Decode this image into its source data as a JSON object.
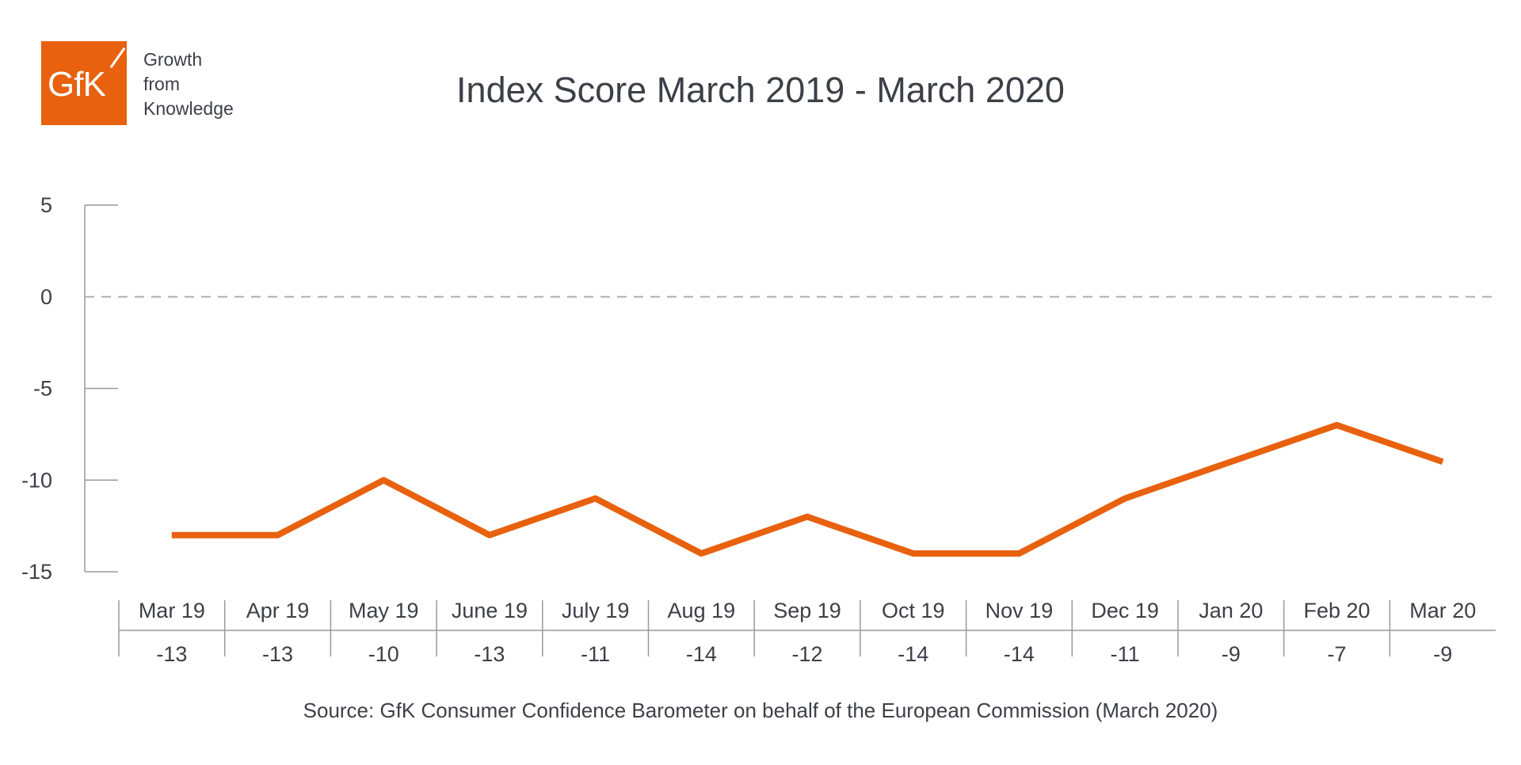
{
  "brand": {
    "logo_text": "GfK",
    "tagline": [
      "Growth",
      "from",
      "Knowledge"
    ],
    "color": "#e8610e"
  },
  "chart_data": {
    "type": "line",
    "title": "Index Score March 2019 - March 2020",
    "source": "Source: GfK Consumer Confidence Barometer on behalf of the European Commission (March 2020)",
    "categories": [
      "Mar 19",
      "Apr 19",
      "May 19",
      "June 19",
      "July 19",
      "Aug 19",
      "Sep 19",
      "Oct 19",
      "Nov 19",
      "Dec 19",
      "Jan 20",
      "Feb 20",
      "Mar 20"
    ],
    "series": [
      {
        "values": [
          -13,
          -13,
          -10,
          -13,
          -11,
          -14,
          -12,
          -14,
          -14,
          -11,
          -9,
          -7,
          -9
        ],
        "color": "#e8610e"
      }
    ],
    "table_labels": [
      "-13",
      "-13",
      "-10",
      "-13",
      "-11",
      "-14",
      "-12",
      "-14",
      "-14",
      "-11",
      "-9",
      "-7",
      "-9"
    ],
    "y_ticks": [
      5,
      0,
      -5,
      -10,
      -15
    ],
    "y_tick_labels": [
      "5",
      "0",
      "-5",
      "-10",
      "-15"
    ],
    "ylim": [
      -15,
      5
    ],
    "zero_line": "dashed",
    "xlabel": "",
    "ylabel": "",
    "legend": "none"
  }
}
